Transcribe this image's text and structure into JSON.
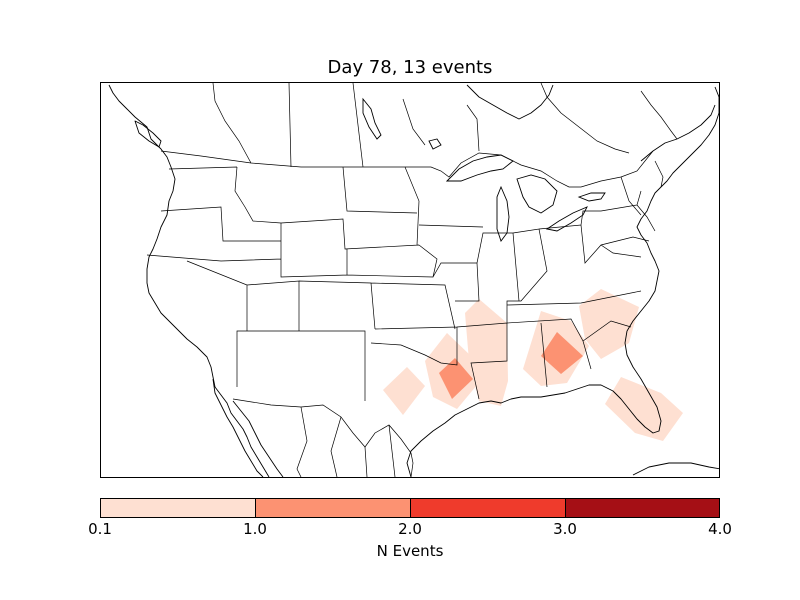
{
  "title": "Day 78, 13 events",
  "colorbar": {
    "label": "N Events",
    "ticks": [
      "0.1",
      "1.0",
      "2.0",
      "3.0",
      "4.0"
    ],
    "bins": [
      {
        "range": [
          0.1,
          1.0
        ],
        "color": "#fee0d2"
      },
      {
        "range": [
          1.0,
          2.0
        ],
        "color": "#fc9272"
      },
      {
        "range": [
          2.0,
          3.0
        ],
        "color": "#ef3b2c"
      },
      {
        "range": [
          3.0,
          4.0
        ],
        "color": "#a50f15"
      }
    ]
  },
  "map": {
    "region": "North America (contiguous United States)",
    "events": [
      {
        "area": "west Texas",
        "count": 0.5
      },
      {
        "area": "northeast Texas / Louisiana",
        "count": 0.5
      },
      {
        "area": "east Texas",
        "count": 1.5
      },
      {
        "area": "Arkansas / Louisiana",
        "count": 0.5
      },
      {
        "area": "Mississippi / Alabama",
        "count": 0.5
      },
      {
        "area": "Georgia",
        "count": 1.5
      },
      {
        "area": "South Carolina",
        "count": 0.5
      },
      {
        "area": "Florida",
        "count": 0.5
      }
    ]
  }
}
